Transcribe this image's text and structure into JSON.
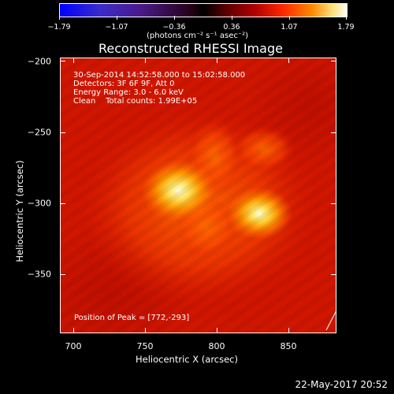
{
  "colorbar": {
    "ticks": [
      "−1.79",
      "−1.07",
      "−0.36",
      "0.36",
      "1.07",
      "1.79"
    ],
    "units": "(photons cm⁻² s⁻¹ asec⁻²)"
  },
  "title": "Reconstructed RHESSI Image",
  "annotations": {
    "line1": "30-Sep-2014 14:52:58.000 to 15:02:58.000",
    "line2": "Detectors: 3F 6F 9F, Att 0",
    "line3": "Energy Range: 3.0 - 6.0 keV",
    "line4": "Clean    Total counts: 1.99E+05",
    "peak": "Position of Peak = [772,-293]"
  },
  "axes": {
    "xlabel": "Heliocentric X (arcsec)",
    "ylabel": "Heliocentric Y (arcsec)",
    "xticks": [
      "700",
      "750",
      "800",
      "850"
    ],
    "yticks": [
      "−200",
      "−250",
      "−300",
      "−350"
    ]
  },
  "timestamp": "22-May-2017 20:52",
  "colors": {
    "background": "#000000",
    "map_base": "#d11600",
    "peak_core": "#fffde0"
  }
}
